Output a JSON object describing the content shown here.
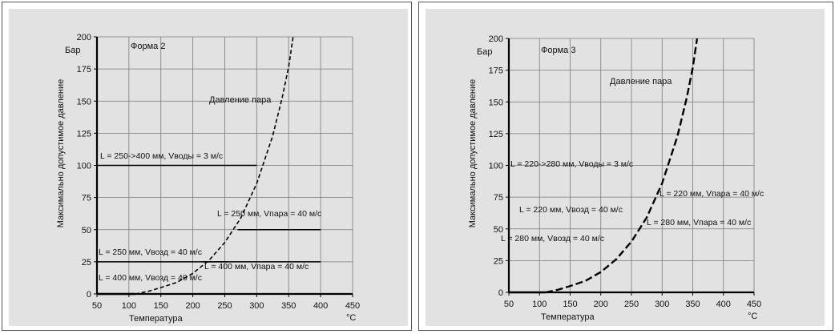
{
  "chart_data": [
    {
      "type": "line",
      "form_label": "Форма 2",
      "ylabel": "Максимально допустимое давление",
      "y_unit": "Бар",
      "xlabel": "Температура",
      "x_unit": "°C",
      "xlim": [
        50,
        450
      ],
      "ylim": [
        0,
        200
      ],
      "x_ticks": [
        "50",
        "100",
        "150",
        "200",
        "250",
        "300",
        "350",
        "400",
        "450"
      ],
      "y_ticks": [
        "0",
        "25",
        "50",
        "75",
        "100",
        "125",
        "150",
        "175",
        "200"
      ],
      "grid": true,
      "curve_label": "Давление пара",
      "steam_curve": [
        [
          110,
          0
        ],
        [
          130,
          2
        ],
        [
          150,
          5
        ],
        [
          175,
          9
        ],
        [
          200,
          16
        ],
        [
          225,
          26
        ],
        [
          250,
          40
        ],
        [
          275,
          59
        ],
        [
          300,
          86
        ],
        [
          325,
          123
        ],
        [
          340,
          153
        ],
        [
          350,
          177
        ],
        [
          357,
          200
        ]
      ],
      "limit_lines": [
        {
          "label": "L = 250->400 мм, Vводы = 3 м/с",
          "x_from": 50,
          "x_to": 300,
          "y": 100
        },
        {
          "label": "L = 250 мм, Vпара = 40 м/с",
          "x_from": 270,
          "x_to": 400,
          "y": 50
        },
        {
          "label": "L = 250 мм, Vвозд = 40 м/с",
          "x_from": 50,
          "x_to": 255,
          "y": 25
        },
        {
          "label": "L = 400 мм, Vпара = 40 м/с",
          "x_from": 215,
          "x_to": 400,
          "y": 25
        },
        {
          "label": "L = 400 мм, Vвозд = 40 м/с",
          "x_from": 50,
          "x_to": 255,
          "y": 0
        }
      ]
    },
    {
      "type": "line",
      "form_label": "Форма 3",
      "ylabel": "Максимально допустимое давление",
      "y_unit": "Бар",
      "xlabel": "Температура",
      "x_unit": "°C",
      "xlim": [
        50,
        450
      ],
      "ylim": [
        0,
        200
      ],
      "x_ticks": [
        "50",
        "100",
        "150",
        "200",
        "250",
        "300",
        "350",
        "400",
        "450"
      ],
      "y_ticks": [
        "0",
        "25",
        "50",
        "75",
        "100",
        "125",
        "150",
        "175",
        "200"
      ],
      "grid": true,
      "curve_label": "Давление пара",
      "steam_curve": [
        [
          110,
          0
        ],
        [
          130,
          2
        ],
        [
          150,
          5
        ],
        [
          175,
          9
        ],
        [
          200,
          16
        ],
        [
          225,
          26
        ],
        [
          250,
          40
        ],
        [
          275,
          59
        ],
        [
          300,
          86
        ],
        [
          325,
          123
        ],
        [
          340,
          153
        ],
        [
          350,
          177
        ],
        [
          357,
          200
        ]
      ],
      "limit_lines": [],
      "annotations": [
        {
          "label": "L = 220->280 мм, Vводы = 3 м/с",
          "y": 100
        },
        {
          "label": "L = 220 мм, Vпара = 40 м/с",
          "y": 78
        },
        {
          "label": "L = 220 мм, Vвозд = 40 м/с",
          "y": 66
        },
        {
          "label": "L = 280 мм, Vпара = 40 м/с",
          "y": 54
        },
        {
          "label": "L = 280 мм, Vвозд = 40 м/с",
          "y": 42
        }
      ]
    }
  ]
}
